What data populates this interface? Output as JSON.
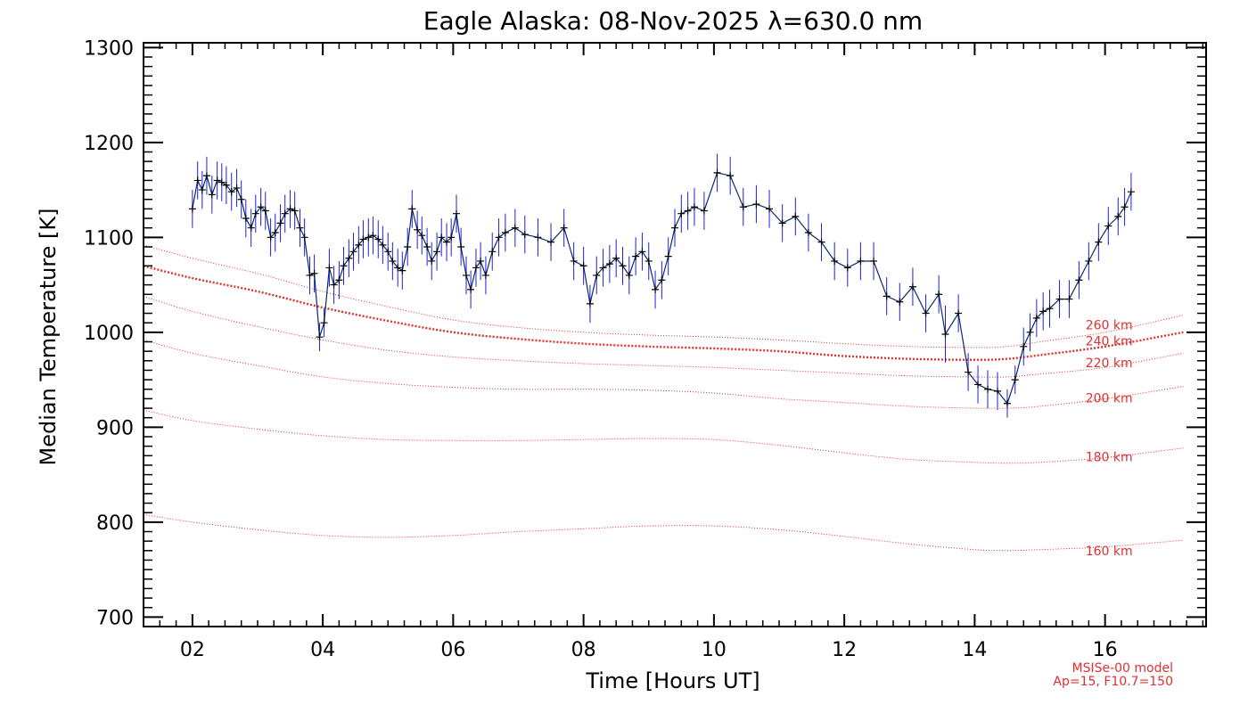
{
  "chart_data": {
    "type": "line",
    "title": "Eagle Alaska: 08-Nov-2025 λ=630.0 nm",
    "xlabel": "Time [Hours UT]",
    "ylabel": "Median Temperature [K]",
    "xlim": [
      1.25,
      17.55
    ],
    "ylim": [
      690,
      1305
    ],
    "xticks": [
      2,
      4,
      6,
      8,
      10,
      12,
      14,
      16
    ],
    "xtick_labels": [
      "02",
      "04",
      "06",
      "08",
      "10",
      "12",
      "14",
      "16"
    ],
    "yticks": [
      700,
      800,
      900,
      1000,
      1100,
      1200,
      1300
    ],
    "ytick_labels": [
      "700",
      "800",
      "900",
      "1000",
      "1100",
      "1200",
      "1300"
    ],
    "grid": false,
    "colors": {
      "measurement": "#000000",
      "error_bar": "#1f1fe6",
      "model": "#e03030"
    },
    "series": [
      {
        "x": [
          2.0,
          2.08,
          2.15,
          2.22,
          2.3,
          2.38,
          2.45,
          2.52,
          2.6,
          2.68,
          2.75,
          2.82,
          2.9,
          2.97,
          3.05,
          3.12,
          3.2,
          3.27,
          3.35,
          3.42,
          3.5,
          3.57,
          3.65,
          3.72,
          3.8,
          3.87,
          3.95,
          4.02,
          4.1,
          4.17,
          4.25,
          4.32,
          4.4,
          4.47,
          4.55,
          4.62,
          4.7,
          4.77,
          4.85,
          4.92,
          5.0,
          5.07,
          5.15,
          5.22,
          5.3,
          5.37,
          5.45,
          5.52,
          5.6,
          5.67,
          5.75,
          5.82,
          5.9,
          5.97,
          6.05,
          6.12,
          6.2,
          6.27,
          6.35,
          6.42,
          6.5,
          6.6,
          6.7,
          6.8,
          6.95,
          7.1,
          7.3,
          7.5,
          7.7,
          7.85,
          8.0,
          8.1,
          8.2,
          8.3,
          8.4,
          8.5,
          8.6,
          8.7,
          8.8,
          8.9,
          9.0,
          9.1,
          9.2,
          9.3,
          9.4,
          9.5,
          9.6,
          9.7,
          9.85,
          10.05,
          10.25,
          10.45,
          10.65,
          10.85,
          11.05,
          11.25,
          11.45,
          11.65,
          11.85,
          12.05,
          12.25,
          12.45,
          12.65,
          12.85,
          13.05,
          13.25,
          13.45,
          13.55,
          13.75,
          13.9,
          14.05,
          14.2,
          14.35,
          14.5,
          14.62,
          14.75,
          14.85,
          14.95,
          15.05,
          15.15,
          15.3,
          15.45,
          15.6,
          15.75,
          15.9,
          16.05,
          16.2,
          16.3,
          16.4
        ],
        "y": [
          1130,
          1160,
          1150,
          1165,
          1145,
          1160,
          1158,
          1155,
          1148,
          1152,
          1140,
          1120,
          1110,
          1125,
          1132,
          1128,
          1100,
          1105,
          1115,
          1125,
          1130,
          1128,
          1110,
          1100,
          1060,
          1062,
          995,
          1010,
          1068,
          1050,
          1055,
          1070,
          1078,
          1085,
          1092,
          1098,
          1100,
          1102,
          1098,
          1092,
          1085,
          1075,
          1068,
          1065,
          1090,
          1130,
          1108,
          1102,
          1090,
          1075,
          1085,
          1100,
          1095,
          1100,
          1125,
          1090,
          1060,
          1045,
          1068,
          1075,
          1060,
          1085,
          1100,
          1105,
          1110,
          1103,
          1100,
          1095,
          1110,
          1075,
          1070,
          1030,
          1060,
          1068,
          1072,
          1078,
          1070,
          1060,
          1080,
          1085,
          1075,
          1045,
          1055,
          1080,
          1110,
          1125,
          1128,
          1132,
          1128,
          1168,
          1165,
          1132,
          1135,
          1130,
          1115,
          1122,
          1105,
          1095,
          1075,
          1068,
          1075,
          1075,
          1038,
          1032,
          1048,
          1020,
          1040,
          998,
          1020,
          958,
          945,
          940,
          938,
          925,
          950,
          985,
          1000,
          1015,
          1022,
          1025,
          1035,
          1035,
          1055,
          1075,
          1095,
          1112,
          1122,
          1132,
          1148
        ],
        "error": [
          20,
          20,
          20,
          20,
          20,
          20,
          20,
          20,
          20,
          20,
          20,
          20,
          20,
          20,
          20,
          20,
          20,
          20,
          20,
          20,
          20,
          20,
          20,
          20,
          20,
          20,
          15,
          15,
          20,
          20,
          20,
          20,
          20,
          20,
          20,
          20,
          20,
          20,
          20,
          20,
          20,
          20,
          20,
          20,
          20,
          20,
          20,
          20,
          20,
          20,
          20,
          20,
          20,
          20,
          20,
          20,
          20,
          20,
          20,
          20,
          20,
          20,
          20,
          20,
          20,
          20,
          20,
          20,
          20,
          20,
          20,
          20,
          20,
          20,
          20,
          20,
          20,
          20,
          20,
          20,
          20,
          20,
          20,
          20,
          20,
          20,
          20,
          20,
          20,
          20,
          20,
          20,
          20,
          20,
          20,
          20,
          20,
          20,
          20,
          20,
          20,
          20,
          20,
          20,
          20,
          20,
          20,
          30,
          20,
          20,
          20,
          20,
          20,
          15,
          15,
          20,
          20,
          20,
          20,
          20,
          20,
          20,
          20,
          20,
          20,
          20,
          20,
          20,
          20
        ]
      }
    ],
    "model_x": [
      1.25,
      2,
      3,
      4,
      5,
      6,
      7,
      8,
      9,
      10,
      11,
      12,
      13,
      14,
      14.5,
      15,
      16,
      17.2
    ],
    "model_series": [
      {
        "label": "160 km",
        "y": [
          808,
          800,
          792,
          786,
          784,
          786,
          790,
          793,
          796,
          796,
          792,
          785,
          777,
          771,
          770,
          771,
          774,
          781
        ],
        "bold": false
      },
      {
        "label": "180 km",
        "y": [
          918,
          907,
          898,
          891,
          887,
          886,
          886,
          887,
          888,
          887,
          881,
          873,
          866,
          863,
          862,
          863,
          868,
          878
        ],
        "bold": false
      },
      {
        "label": "200 km",
        "y": [
          992,
          978,
          965,
          953,
          946,
          942,
          940,
          940,
          939,
          936,
          930,
          926,
          922,
          920,
          920,
          922,
          930,
          943
        ],
        "bold": false
      },
      {
        "label": "220 km",
        "y": [
          1038,
          1022,
          1006,
          992,
          981,
          974,
          970,
          967,
          965,
          963,
          960,
          957,
          954,
          953,
          953,
          956,
          963,
          978
        ],
        "bold": false
      },
      {
        "label": "240 km",
        "y": [
          1070,
          1057,
          1043,
          1026,
          1012,
          1000,
          993,
          988,
          985,
          983,
          980,
          975,
          972,
          971,
          972,
          976,
          985,
          1000
        ],
        "bold": true
      },
      {
        "label": "260 km",
        "y": [
          1092,
          1078,
          1062,
          1043,
          1027,
          1013,
          1005,
          1000,
          997,
          995,
          992,
          988,
          985,
          984,
          985,
          990,
          1000,
          1018
        ],
        "bold": false
      }
    ],
    "model_label_x": 15.7,
    "model_label_y": [
      770,
      869,
      931,
      968,
      991,
      1008
    ],
    "annotation": [
      "MSISe-00 model",
      "Ap=15, F10.7=150"
    ]
  }
}
